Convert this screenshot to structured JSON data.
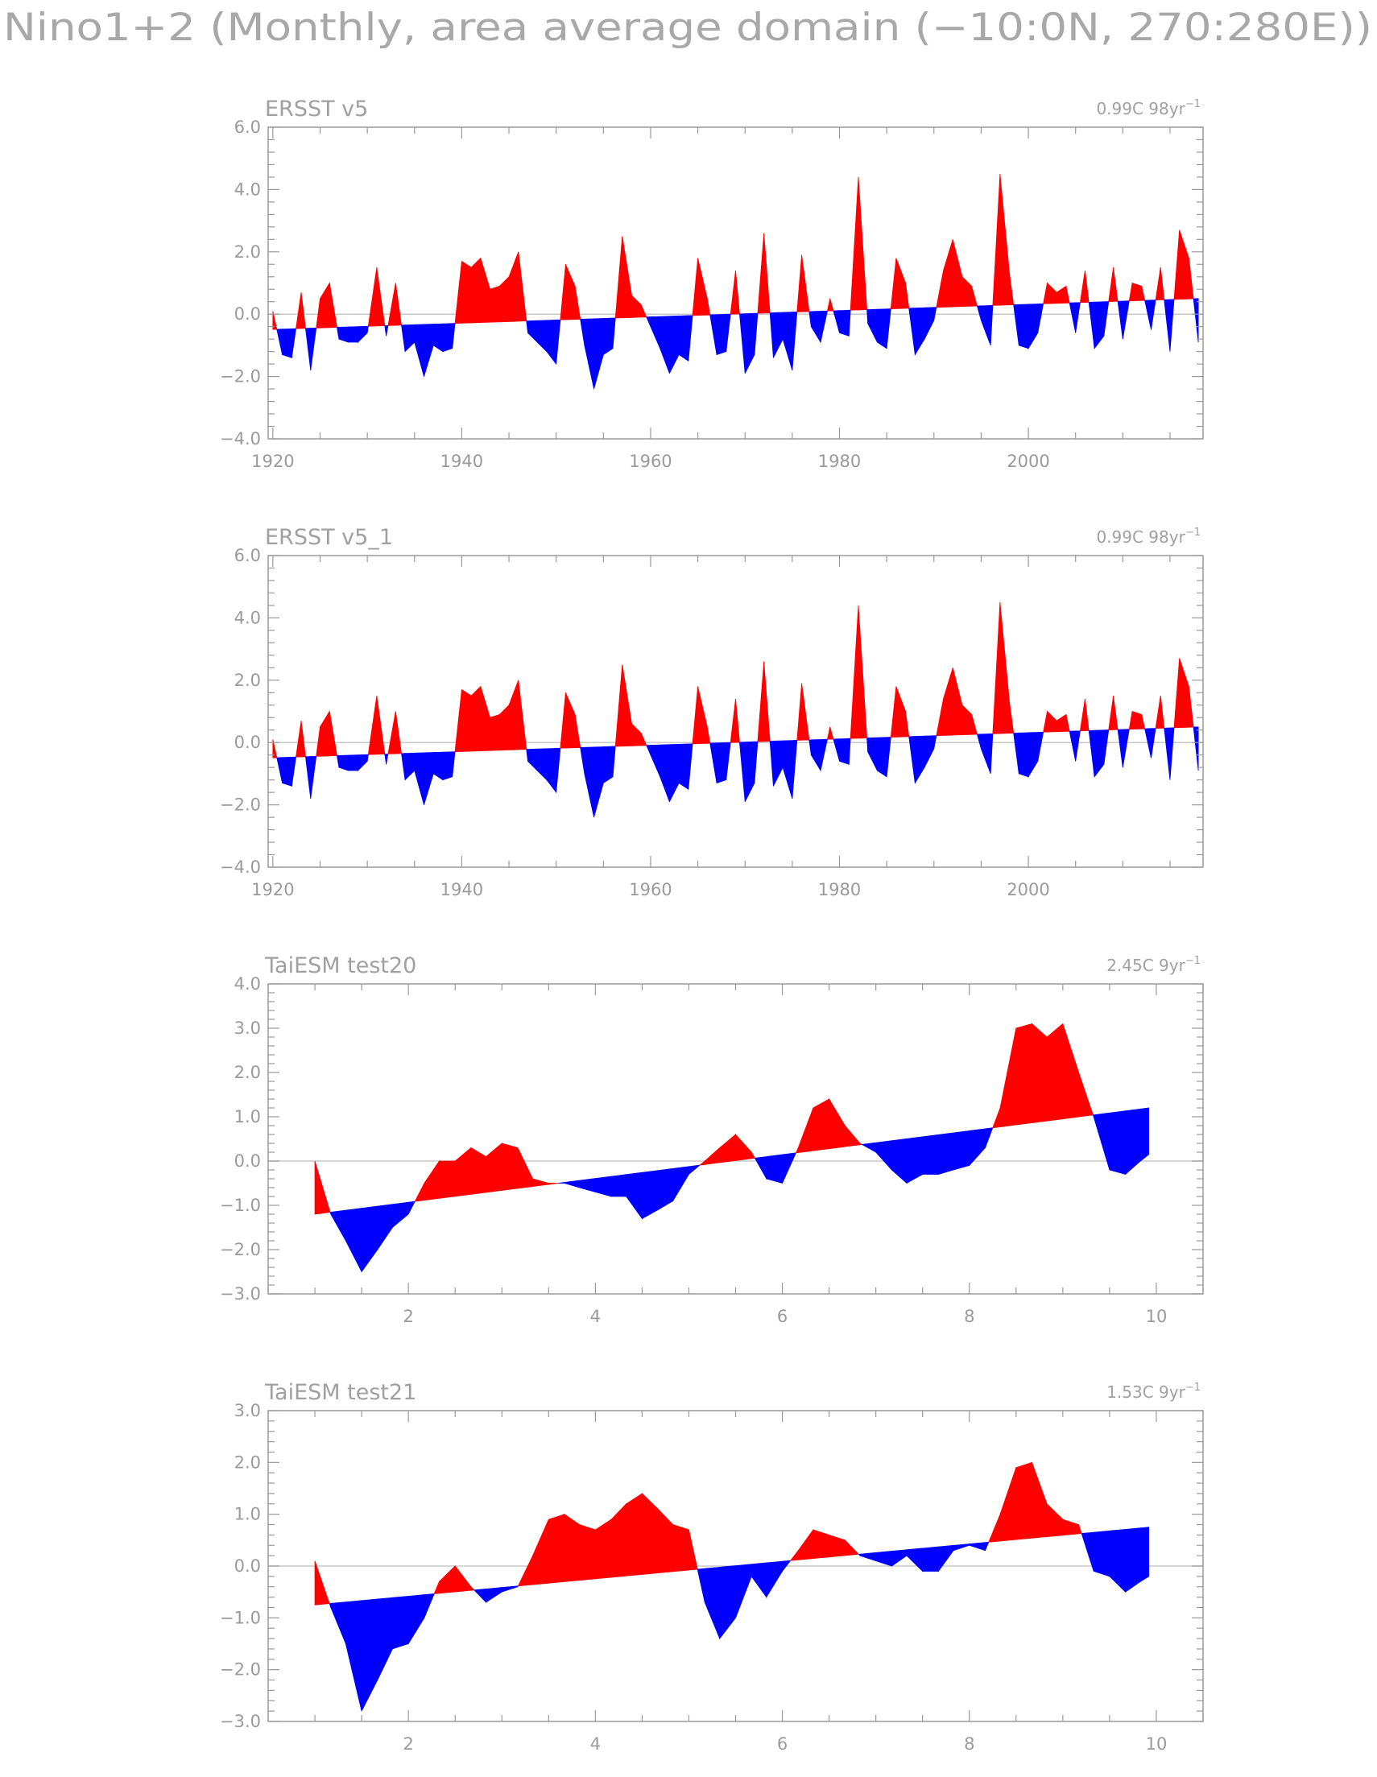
{
  "figure": {
    "title": "Nino1+2 (Monthly, area average domain (−10:0N, 270:280E))"
  },
  "colors": {
    "positive": "#ff0000",
    "negative": "#0000ff",
    "frame": "#9a9a9a",
    "zero_line": "#c8c8c8"
  },
  "chart_data": [
    {
      "type": "area",
      "title": "ERSST v5",
      "trend_value": "0.99C 98yr",
      "trend_exponent": "−1",
      "xlim": [
        1919.5,
        2018.5
      ],
      "ylim": [
        -4.0,
        6.0
      ],
      "yticks": [
        -4.0,
        -2.0,
        0.0,
        2.0,
        4.0,
        6.0
      ],
      "ytick_labels": [
        "−4.0",
        "−2.0",
        "0.0",
        "2.0",
        "4.0",
        "6.0"
      ],
      "xticks": [
        1920,
        1940,
        1960,
        1980,
        2000
      ],
      "xtick_labels": [
        "1920",
        "1940",
        "1960",
        "1980",
        "2000"
      ],
      "trend_line": {
        "x": [
          1920,
          2018
        ],
        "y": [
          -0.49,
          0.5
        ]
      },
      "x": [
        1920,
        1921,
        1922,
        1923,
        1924,
        1925,
        1926,
        1927,
        1928,
        1929,
        1930,
        1931,
        1932,
        1933,
        1934,
        1935,
        1936,
        1937,
        1938,
        1939,
        1940,
        1941,
        1942,
        1943,
        1944,
        1945,
        1946,
        1947,
        1948,
        1949,
        1950,
        1951,
        1952,
        1953,
        1954,
        1955,
        1956,
        1957,
        1958,
        1959,
        1960,
        1961,
        1962,
        1963,
        1964,
        1965,
        1966,
        1967,
        1968,
        1969,
        1970,
        1971,
        1972,
        1973,
        1974,
        1975,
        1976,
        1977,
        1978,
        1979,
        1980,
        1981,
        1982,
        1983,
        1984,
        1985,
        1986,
        1987,
        1988,
        1989,
        1990,
        1991,
        1992,
        1993,
        1994,
        1995,
        1996,
        1997,
        1998,
        1999,
        2000,
        2001,
        2002,
        2003,
        2004,
        2005,
        2006,
        2007,
        2008,
        2009,
        2010,
        2011,
        2012,
        2013,
        2014,
        2015,
        2016,
        2017,
        2018
      ],
      "y": [
        0.1,
        -1.3,
        -1.4,
        0.7,
        -1.8,
        0.5,
        1.0,
        -0.8,
        -0.9,
        -0.9,
        -0.6,
        1.5,
        -0.7,
        1.0,
        -1.2,
        -0.9,
        -2.0,
        -1.0,
        -1.2,
        -1.1,
        1.7,
        1.5,
        1.8,
        0.8,
        0.9,
        1.2,
        2.0,
        -0.6,
        -0.9,
        -1.2,
        -1.6,
        1.6,
        0.9,
        -1.0,
        -2.4,
        -1.3,
        -1.1,
        2.5,
        0.6,
        0.3,
        -0.4,
        -1.1,
        -1.9,
        -1.3,
        -1.5,
        1.8,
        0.5,
        -1.3,
        -1.2,
        1.4,
        -1.9,
        -1.3,
        2.6,
        -1.4,
        -0.8,
        -1.8,
        1.9,
        -0.4,
        -0.9,
        0.5,
        -0.6,
        -0.7,
        4.4,
        -0.3,
        -0.9,
        -1.1,
        1.8,
        1.0,
        -1.3,
        -0.8,
        -0.2,
        1.4,
        2.4,
        1.2,
        0.9,
        -0.2,
        -1.0,
        4.5,
        1.3,
        -1.0,
        -1.1,
        -0.6,
        1.0,
        0.7,
        0.9,
        -0.6,
        1.4,
        -1.1,
        -0.7,
        1.5,
        -0.8,
        1.0,
        0.9,
        -0.5,
        1.5,
        -1.2,
        2.7,
        1.8,
        -0.9
      ]
    },
    {
      "type": "area",
      "title": "ERSST v5_1",
      "trend_value": "0.99C 98yr",
      "trend_exponent": "−1",
      "xlim": [
        1919.5,
        2018.5
      ],
      "ylim": [
        -4.0,
        6.0
      ],
      "yticks": [
        -4.0,
        -2.0,
        0.0,
        2.0,
        4.0,
        6.0
      ],
      "ytick_labels": [
        "−4.0",
        "−2.0",
        "0.0",
        "2.0",
        "4.0",
        "6.0"
      ],
      "xticks": [
        1920,
        1940,
        1960,
        1980,
        2000
      ],
      "xtick_labels": [
        "1920",
        "1940",
        "1960",
        "1980",
        "2000"
      ],
      "trend_line": {
        "x": [
          1920,
          2018
        ],
        "y": [
          -0.49,
          0.5
        ]
      },
      "x": [
        1920,
        1921,
        1922,
        1923,
        1924,
        1925,
        1926,
        1927,
        1928,
        1929,
        1930,
        1931,
        1932,
        1933,
        1934,
        1935,
        1936,
        1937,
        1938,
        1939,
        1940,
        1941,
        1942,
        1943,
        1944,
        1945,
        1946,
        1947,
        1948,
        1949,
        1950,
        1951,
        1952,
        1953,
        1954,
        1955,
        1956,
        1957,
        1958,
        1959,
        1960,
        1961,
        1962,
        1963,
        1964,
        1965,
        1966,
        1967,
        1968,
        1969,
        1970,
        1971,
        1972,
        1973,
        1974,
        1975,
        1976,
        1977,
        1978,
        1979,
        1980,
        1981,
        1982,
        1983,
        1984,
        1985,
        1986,
        1987,
        1988,
        1989,
        1990,
        1991,
        1992,
        1993,
        1994,
        1995,
        1996,
        1997,
        1998,
        1999,
        2000,
        2001,
        2002,
        2003,
        2004,
        2005,
        2006,
        2007,
        2008,
        2009,
        2010,
        2011,
        2012,
        2013,
        2014,
        2015,
        2016,
        2017,
        2018
      ],
      "y": [
        0.1,
        -1.3,
        -1.4,
        0.7,
        -1.8,
        0.5,
        1.0,
        -0.8,
        -0.9,
        -0.9,
        -0.6,
        1.5,
        -0.7,
        1.0,
        -1.2,
        -0.9,
        -2.0,
        -1.0,
        -1.2,
        -1.1,
        1.7,
        1.5,
        1.8,
        0.8,
        0.9,
        1.2,
        2.0,
        -0.6,
        -0.9,
        -1.2,
        -1.6,
        1.6,
        0.9,
        -1.0,
        -2.4,
        -1.3,
        -1.1,
        2.5,
        0.6,
        0.3,
        -0.4,
        -1.1,
        -1.9,
        -1.3,
        -1.5,
        1.8,
        0.5,
        -1.3,
        -1.2,
        1.4,
        -1.9,
        -1.3,
        2.6,
        -1.4,
        -0.8,
        -1.8,
        1.9,
        -0.4,
        -0.9,
        0.5,
        -0.6,
        -0.7,
        4.4,
        -0.3,
        -0.9,
        -1.1,
        1.8,
        1.0,
        -1.3,
        -0.8,
        -0.2,
        1.4,
        2.4,
        1.2,
        0.9,
        -0.2,
        -1.0,
        4.5,
        1.3,
        -1.0,
        -1.1,
        -0.6,
        1.0,
        0.7,
        0.9,
        -0.6,
        1.4,
        -1.1,
        -0.7,
        1.5,
        -0.8,
        1.0,
        0.9,
        -0.5,
        1.5,
        -1.2,
        2.7,
        1.8,
        -0.9
      ]
    },
    {
      "type": "area",
      "title": "TaiESM test20",
      "trend_value": "2.45C 9yr",
      "trend_exponent": "−1",
      "xlim": [
        0.5,
        10.5
      ],
      "ylim": [
        -3.0,
        4.0
      ],
      "yticks": [
        -3.0,
        -2.0,
        -1.0,
        0.0,
        1.0,
        2.0,
        3.0,
        4.0
      ],
      "ytick_labels": [
        "−3.0",
        "−2.0",
        "−1.0",
        "0.0",
        "1.0",
        "2.0",
        "3.0",
        "4.0"
      ],
      "xticks": [
        2,
        4,
        6,
        8,
        10
      ],
      "xtick_labels": [
        "2",
        "4",
        "6",
        "8",
        "10"
      ],
      "trend_line": {
        "x": [
          1.0,
          9.92
        ],
        "y": [
          -1.2,
          1.2
        ]
      },
      "x": [
        1.0,
        1.17,
        1.33,
        1.5,
        1.67,
        1.83,
        2.0,
        2.17,
        2.33,
        2.5,
        2.67,
        2.83,
        3.0,
        3.17,
        3.33,
        3.5,
        3.67,
        3.83,
        4.0,
        4.17,
        4.33,
        4.5,
        4.67,
        4.83,
        5.0,
        5.17,
        5.33,
        5.5,
        5.67,
        5.83,
        6.0,
        6.17,
        6.33,
        6.5,
        6.67,
        6.83,
        7.0,
        7.17,
        7.33,
        7.5,
        7.67,
        7.83,
        8.0,
        8.17,
        8.33,
        8.5,
        8.67,
        8.83,
        9.0,
        9.17,
        9.33,
        9.5,
        9.67,
        9.83,
        9.92
      ],
      "y": [
        0.0,
        -1.2,
        -1.8,
        -2.5,
        -2.0,
        -1.5,
        -1.2,
        -0.5,
        0.0,
        0.0,
        0.3,
        0.1,
        0.4,
        0.3,
        -0.4,
        -0.5,
        -0.5,
        -0.6,
        -0.7,
        -0.8,
        -0.8,
        -1.3,
        -1.1,
        -0.9,
        -0.3,
        0.0,
        0.3,
        0.6,
        0.2,
        -0.4,
        -0.5,
        0.3,
        1.2,
        1.4,
        0.8,
        0.4,
        0.2,
        -0.2,
        -0.5,
        -0.3,
        -0.3,
        -0.2,
        -0.1,
        0.3,
        1.2,
        3.0,
        3.1,
        2.8,
        3.1,
        2.0,
        1.0,
        -0.2,
        -0.3,
        0.0,
        0.15
      ]
    },
    {
      "type": "area",
      "title": "TaiESM test21",
      "trend_value": "1.53C 9yr",
      "trend_exponent": "−1",
      "xlim": [
        0.5,
        10.5
      ],
      "ylim": [
        -3.0,
        3.0
      ],
      "yticks": [
        -3.0,
        -2.0,
        -1.0,
        0.0,
        1.0,
        2.0,
        3.0
      ],
      "ytick_labels": [
        "−3.0",
        "−2.0",
        "−1.0",
        "0.0",
        "1.0",
        "2.0",
        "3.0"
      ],
      "xticks": [
        2,
        4,
        6,
        8,
        10
      ],
      "xtick_labels": [
        "2",
        "4",
        "6",
        "8",
        "10"
      ],
      "trend_line": {
        "x": [
          1.0,
          9.92
        ],
        "y": [
          -0.75,
          0.75
        ]
      },
      "x": [
        1.0,
        1.17,
        1.33,
        1.5,
        1.67,
        1.83,
        2.0,
        2.17,
        2.33,
        2.5,
        2.67,
        2.83,
        3.0,
        3.17,
        3.33,
        3.5,
        3.67,
        3.83,
        4.0,
        4.17,
        4.33,
        4.5,
        4.67,
        4.83,
        5.0,
        5.17,
        5.33,
        5.5,
        5.67,
        5.83,
        6.0,
        6.17,
        6.33,
        6.5,
        6.67,
        6.83,
        7.0,
        7.17,
        7.33,
        7.5,
        7.67,
        7.83,
        8.0,
        8.17,
        8.33,
        8.5,
        8.67,
        8.83,
        9.0,
        9.17,
        9.33,
        9.5,
        9.67,
        9.83,
        9.92
      ],
      "y": [
        0.1,
        -0.8,
        -1.5,
        -2.8,
        -2.2,
        -1.6,
        -1.5,
        -1.0,
        -0.3,
        0.0,
        -0.4,
        -0.7,
        -0.5,
        -0.4,
        0.2,
        0.9,
        1.0,
        0.8,
        0.7,
        0.9,
        1.2,
        1.4,
        1.1,
        0.8,
        0.7,
        -0.7,
        -1.4,
        -1.0,
        -0.2,
        -0.6,
        -0.1,
        0.3,
        0.7,
        0.6,
        0.5,
        0.2,
        0.1,
        0.0,
        0.2,
        -0.1,
        -0.1,
        0.3,
        0.4,
        0.3,
        1.0,
        1.9,
        2.0,
        1.2,
        0.9,
        0.8,
        -0.1,
        -0.2,
        -0.5,
        -0.3,
        -0.2
      ]
    }
  ]
}
